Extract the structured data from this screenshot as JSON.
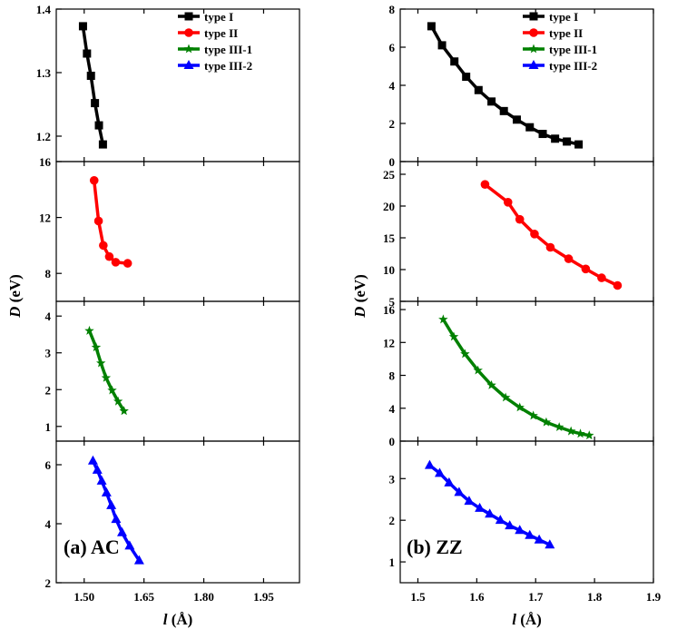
{
  "chart_data": [
    {
      "type": "line",
      "panel_label": "(a) AC",
      "xlabel_italic": "l",
      "xlabel_unit": "(Å)",
      "ylabel_italic": "D",
      "ylabel_unit": "(eV)",
      "xlim": [
        1.43,
        2.04
      ],
      "xticks": [
        1.5,
        1.65,
        1.8,
        1.95
      ],
      "xtick_labels": [
        "1.50",
        "1.65",
        "1.80",
        "1.95"
      ],
      "legend": {
        "placement": "top-right",
        "entries": [
          "type I",
          "type II",
          "type III-1",
          "type III-2"
        ]
      },
      "subplots": [
        {
          "series_name": "type I",
          "color": "#000000",
          "marker": "square",
          "ylim": [
            1.16,
            1.4
          ],
          "yticks": [
            1.2,
            1.3,
            1.4
          ],
          "ytick_labels": [
            "1.2",
            "1.3",
            "1.4"
          ],
          "x": [
            1.497,
            1.507,
            1.517,
            1.527,
            1.537,
            1.547
          ],
          "y": [
            1.373,
            1.33,
            1.295,
            1.252,
            1.217,
            1.187
          ]
        },
        {
          "series_name": "type II",
          "color": "#ff0000",
          "marker": "circle",
          "ylim": [
            6.0,
            16.0
          ],
          "yticks": [
            8,
            12,
            16
          ],
          "ytick_labels": [
            "8",
            "12",
            "16"
          ],
          "x": [
            1.525,
            1.536,
            1.548,
            1.563,
            1.579,
            1.609
          ],
          "y": [
            14.65,
            11.75,
            10.0,
            9.2,
            8.8,
            8.72
          ]
        },
        {
          "series_name": "type III-1",
          "color": "#008000",
          "marker": "star",
          "ylim": [
            0.6,
            4.4
          ],
          "yticks": [
            1,
            2,
            3,
            4
          ],
          "ytick_labels": [
            "1",
            "2",
            "3",
            "4"
          ],
          "x": [
            1.513,
            1.53,
            1.542,
            1.555,
            1.57,
            1.585,
            1.6
          ],
          "y": [
            3.6,
            3.15,
            2.72,
            2.32,
            1.98,
            1.68,
            1.42
          ]
        },
        {
          "series_name": "type III-2",
          "color": "#0000ff",
          "marker": "triangle",
          "ylim": [
            2.0,
            6.8
          ],
          "yticks": [
            2,
            4,
            6
          ],
          "ytick_labels": [
            "2",
            "4",
            "6"
          ],
          "x": [
            1.522,
            1.533,
            1.544,
            1.556,
            1.568,
            1.58,
            1.595,
            1.614,
            1.638
          ],
          "y": [
            6.13,
            5.82,
            5.45,
            5.05,
            4.62,
            4.15,
            3.7,
            3.25,
            2.75
          ]
        }
      ]
    },
    {
      "type": "line",
      "panel_label": "(b) ZZ",
      "xlabel_italic": "l",
      "xlabel_unit": "(Å)",
      "ylabel_italic": "D",
      "ylabel_unit": "(eV)",
      "xlim": [
        1.47,
        1.9
      ],
      "xticks": [
        1.5,
        1.6,
        1.7,
        1.8,
        1.9
      ],
      "xtick_labels": [
        "1.5",
        "1.6",
        "1.7",
        "1.8",
        "1.9"
      ],
      "legend": {
        "placement": "top-right",
        "entries": [
          "type I",
          "type II",
          "type III-1",
          "type III-2"
        ]
      },
      "subplots": [
        {
          "series_name": "type I",
          "color": "#000000",
          "marker": "square",
          "ylim": [
            0,
            8
          ],
          "yticks": [
            0,
            2,
            4,
            6,
            8
          ],
          "ytick_labels": [
            "0",
            "2",
            "4",
            "6",
            "8"
          ],
          "x": [
            1.523,
            1.541,
            1.562,
            1.582,
            1.603,
            1.625,
            1.646,
            1.668,
            1.69,
            1.712,
            1.733,
            1.753,
            1.773
          ],
          "y": [
            7.1,
            6.1,
            5.25,
            4.45,
            3.75,
            3.15,
            2.65,
            2.2,
            1.8,
            1.45,
            1.2,
            1.05,
            0.9
          ]
        },
        {
          "series_name": "type II",
          "color": "#ff0000",
          "marker": "circle",
          "ylim": [
            5,
            27
          ],
          "yticks": [
            5,
            10,
            15,
            20,
            25
          ],
          "ytick_labels": [
            "5",
            "10",
            "15",
            "20",
            "25"
          ],
          "x": [
            1.614,
            1.653,
            1.673,
            1.698,
            1.725,
            1.756,
            1.785,
            1.812,
            1.839
          ],
          "y": [
            23.4,
            20.6,
            17.9,
            15.6,
            13.5,
            11.7,
            10.1,
            8.7,
            7.5
          ]
        },
        {
          "series_name": "type III-1",
          "color": "#008000",
          "marker": "star",
          "ylim": [
            0,
            17
          ],
          "yticks": [
            0,
            4,
            8,
            12,
            16
          ],
          "ytick_labels": [
            "0",
            "4",
            "8",
            "12",
            "16"
          ],
          "x": [
            1.543,
            1.561,
            1.58,
            1.602,
            1.625,
            1.649,
            1.673,
            1.696,
            1.718,
            1.74,
            1.76,
            1.776,
            1.791
          ],
          "y": [
            14.8,
            12.7,
            10.6,
            8.6,
            6.8,
            5.3,
            4.1,
            3.1,
            2.3,
            1.7,
            1.2,
            0.9,
            0.7
          ]
        },
        {
          "series_name": "type III-2",
          "color": "#0000ff",
          "marker": "triangle",
          "ylim": [
            0.5,
            3.9
          ],
          "yticks": [
            1,
            2,
            3
          ],
          "ytick_labels": [
            "1",
            "2",
            "3"
          ],
          "x": [
            1.52,
            1.537,
            1.553,
            1.57,
            1.587,
            1.605,
            1.622,
            1.64,
            1.656,
            1.673,
            1.69,
            1.706,
            1.724
          ],
          "y": [
            3.32,
            3.13,
            2.9,
            2.67,
            2.46,
            2.29,
            2.15,
            2.0,
            1.87,
            1.76,
            1.64,
            1.53,
            1.41
          ]
        }
      ]
    }
  ]
}
